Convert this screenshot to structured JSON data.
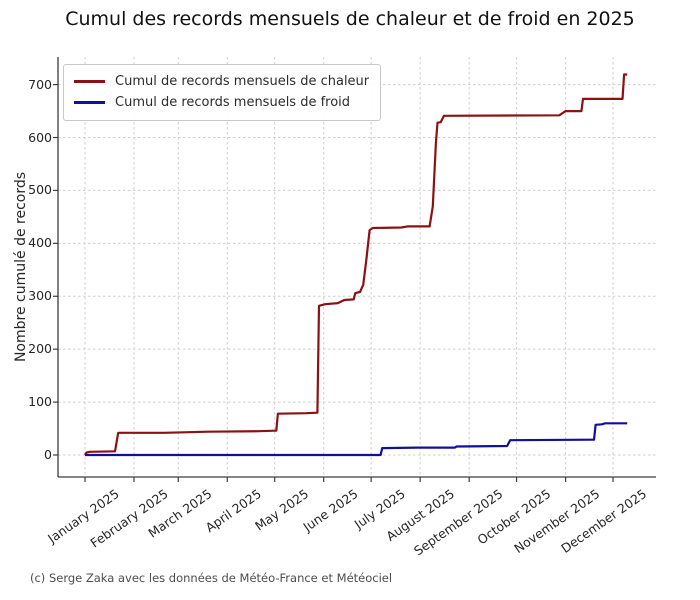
{
  "title": "Cumul des records mensuels de chaleur et de froid en 2025",
  "credit": "(c) Serge Zaka avec les données de Météo-France et Météociel",
  "chart_data": {
    "type": "line",
    "title": "Cumul des records mensuels de chaleur et de froid en 2025",
    "xlabel": "",
    "ylabel": "Nombre cumulé de records",
    "ylim": [
      -40,
      750
    ],
    "y_ticks": [
      0,
      100,
      200,
      300,
      400,
      500,
      600,
      700
    ],
    "x_tick_labels": [
      "January 2025",
      "February 2025",
      "March 2025",
      "April 2025",
      "May 2025",
      "June 2025",
      "July 2025",
      "August 2025",
      "September 2025",
      "October 2025",
      "November 2025",
      "December 2025"
    ],
    "x_tick_days": [
      0,
      31,
      59,
      90,
      120,
      151,
      181,
      212,
      243,
      273,
      304,
      334
    ],
    "grid": true,
    "legend_position": "upper left",
    "series": [
      {
        "name": "Cumul de records mensuels de chaleur",
        "color": "#8b1212",
        "final_value": 719,
        "points": [
          [
            0,
            0
          ],
          [
            1,
            5
          ],
          [
            3,
            6
          ],
          [
            19,
            7
          ],
          [
            21,
            42
          ],
          [
            50,
            42
          ],
          [
            78,
            44
          ],
          [
            110,
            45
          ],
          [
            120,
            46
          ],
          [
            121,
            46
          ],
          [
            122,
            78
          ],
          [
            140,
            79
          ],
          [
            147,
            80
          ],
          [
            148,
            282
          ],
          [
            152,
            285
          ],
          [
            160,
            287
          ],
          [
            164,
            293
          ],
          [
            170,
            294
          ],
          [
            171,
            306
          ],
          [
            174,
            308
          ],
          [
            175,
            315
          ],
          [
            176,
            321
          ],
          [
            178,
            370
          ],
          [
            180,
            425
          ],
          [
            182,
            429
          ],
          [
            200,
            430
          ],
          [
            204,
            432
          ],
          [
            218,
            432
          ],
          [
            220,
            470
          ],
          [
            222,
            590
          ],
          [
            223,
            628
          ],
          [
            225,
            629
          ],
          [
            227,
            641
          ],
          [
            300,
            642
          ],
          [
            304,
            650
          ],
          [
            314,
            650
          ],
          [
            315,
            673
          ],
          [
            340,
            673
          ],
          [
            341,
            719
          ],
          [
            343,
            719
          ]
        ]
      },
      {
        "name": "Cumul de records mensuels de froid",
        "color": "#10109b",
        "final_value": 60,
        "points": [
          [
            0,
            0
          ],
          [
            187,
            0
          ],
          [
            188,
            13
          ],
          [
            210,
            14
          ],
          [
            234,
            14
          ],
          [
            235,
            16
          ],
          [
            267,
            17
          ],
          [
            269,
            28
          ],
          [
            320,
            29
          ],
          [
            322,
            29
          ],
          [
            323,
            57
          ],
          [
            327,
            58
          ],
          [
            329,
            60
          ],
          [
            343,
            60
          ]
        ]
      }
    ]
  }
}
